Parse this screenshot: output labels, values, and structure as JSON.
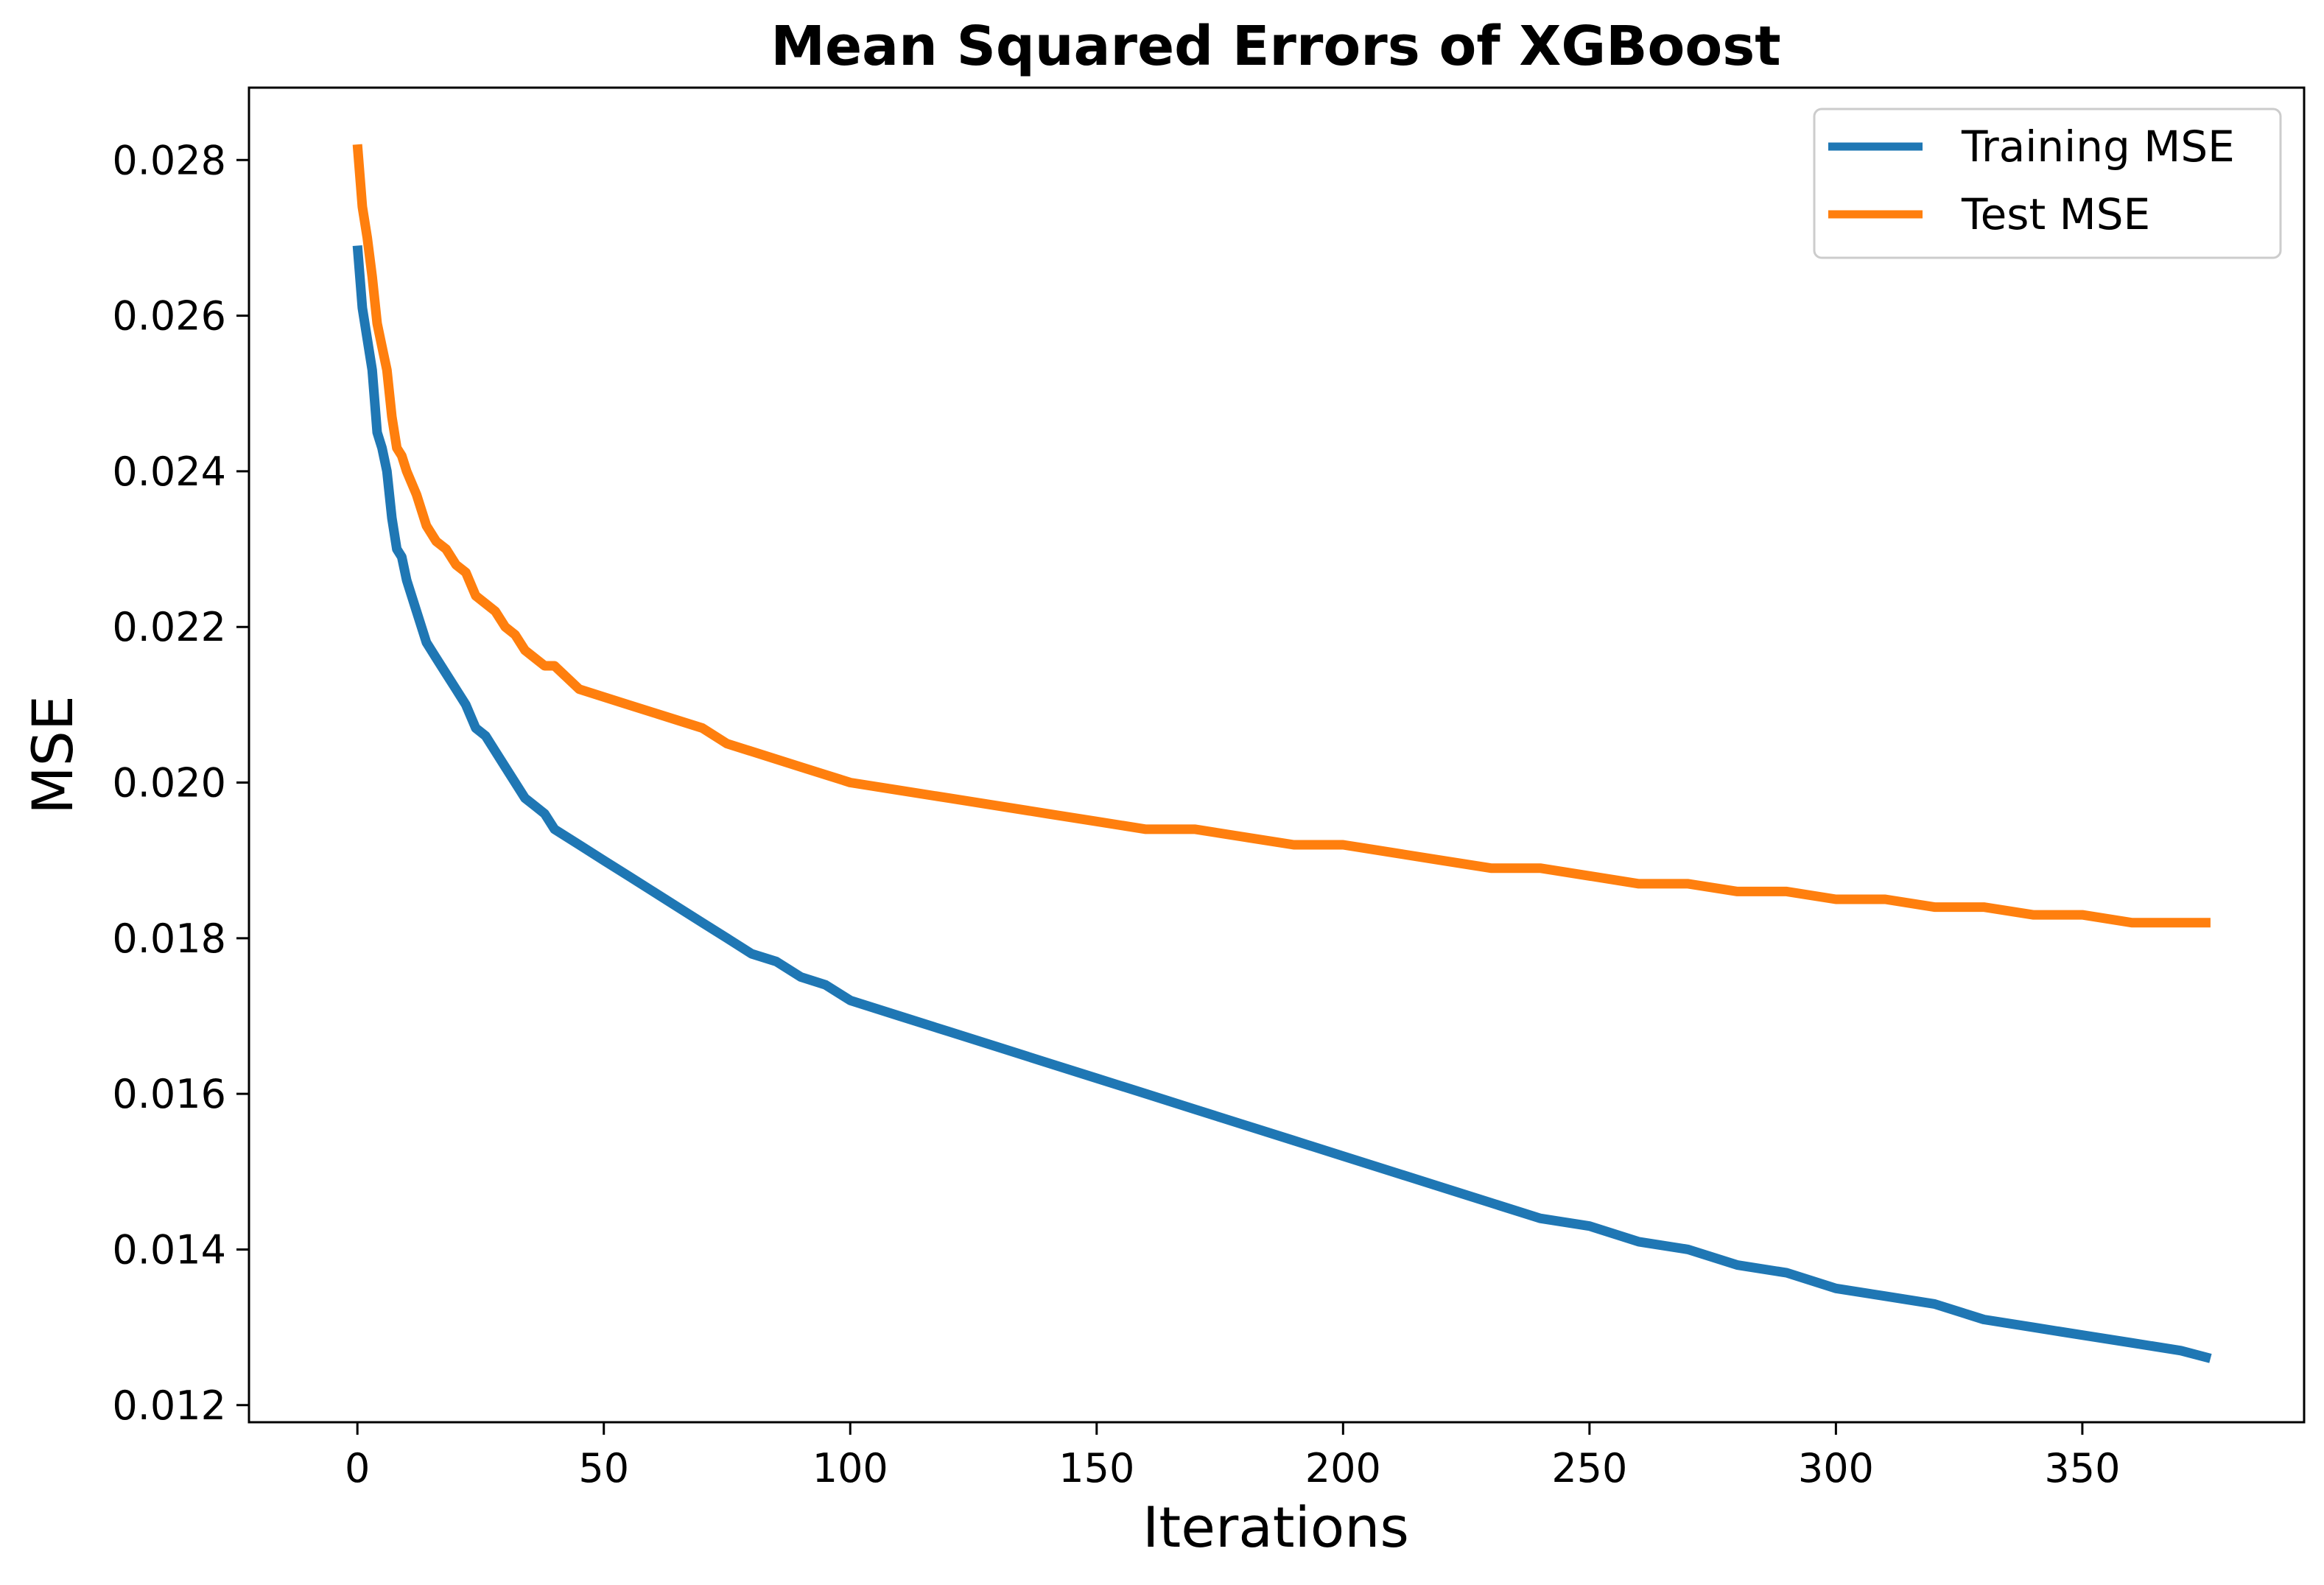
{
  "chart_data": {
    "type": "line",
    "title": "Mean Squared Errors of XGBoost",
    "xlabel": "Iterations",
    "ylabel": "MSE",
    "xlim": [
      -22,
      395
    ],
    "ylim": [
      0.01178,
      0.02893
    ],
    "xticks": [
      0,
      50,
      100,
      150,
      200,
      250,
      300,
      350
    ],
    "xtick_labels": [
      "0",
      "50",
      "100",
      "150",
      "200",
      "250",
      "300",
      "350"
    ],
    "yticks": [
      0.012,
      0.014,
      0.016,
      0.018,
      0.02,
      0.022,
      0.024,
      0.026,
      0.028
    ],
    "ytick_labels": [
      "0.012",
      "0.014",
      "0.016",
      "0.018",
      "0.020",
      "0.022",
      "0.024",
      "0.026",
      "0.028"
    ],
    "grid": false,
    "legend_position": "top-right",
    "x": [
      0,
      1,
      2,
      3,
      4,
      5,
      6,
      7,
      8,
      9,
      10,
      12,
      14,
      16,
      18,
      20,
      22,
      24,
      26,
      28,
      30,
      32,
      34,
      36,
      38,
      40,
      45,
      50,
      55,
      60,
      65,
      70,
      75,
      80,
      85,
      90,
      95,
      100,
      110,
      120,
      130,
      140,
      150,
      160,
      170,
      180,
      190,
      200,
      210,
      220,
      230,
      240,
      250,
      260,
      270,
      280,
      290,
      300,
      310,
      320,
      330,
      340,
      350,
      360,
      370,
      376
    ],
    "series": [
      {
        "name": "Training MSE",
        "color": "#1f77b4",
        "values": [
          0.0269,
          0.0261,
          0.0257,
          0.0253,
          0.0245,
          0.0243,
          0.024,
          0.0234,
          0.023,
          0.0229,
          0.0226,
          0.0222,
          0.0218,
          0.0216,
          0.0214,
          0.0212,
          0.021,
          0.0207,
          0.0206,
          0.0204,
          0.0202,
          0.02,
          0.0198,
          0.0197,
          0.0196,
          0.0194,
          0.0192,
          0.019,
          0.0188,
          0.0186,
          0.0184,
          0.0182,
          0.018,
          0.0178,
          0.0177,
          0.0175,
          0.0174,
          0.0172,
          0.017,
          0.0168,
          0.0166,
          0.0164,
          0.0162,
          0.016,
          0.0158,
          0.0156,
          0.0154,
          0.0152,
          0.015,
          0.0148,
          0.0146,
          0.0144,
          0.0143,
          0.0141,
          0.014,
          0.0138,
          0.0137,
          0.0135,
          0.0134,
          0.0133,
          0.0131,
          0.013,
          0.0129,
          0.0128,
          0.0127,
          0.0126
        ]
      },
      {
        "name": "Test MSE",
        "color": "#ff7f0e",
        "values": [
          0.0282,
          0.0274,
          0.027,
          0.0265,
          0.0259,
          0.0256,
          0.0253,
          0.0247,
          0.0243,
          0.0242,
          0.024,
          0.0237,
          0.0233,
          0.0231,
          0.023,
          0.0228,
          0.0227,
          0.0224,
          0.0223,
          0.0222,
          0.022,
          0.0219,
          0.0217,
          0.0216,
          0.0215,
          0.0215,
          0.0212,
          0.0211,
          0.021,
          0.0209,
          0.0208,
          0.0207,
          0.0205,
          0.0204,
          0.0203,
          0.0202,
          0.0201,
          0.02,
          0.0199,
          0.0198,
          0.0197,
          0.0196,
          0.0195,
          0.0194,
          0.0194,
          0.0193,
          0.0192,
          0.0192,
          0.0191,
          0.019,
          0.0189,
          0.0189,
          0.0188,
          0.0187,
          0.0187,
          0.0186,
          0.0186,
          0.0185,
          0.0185,
          0.0184,
          0.0184,
          0.0183,
          0.0183,
          0.0182,
          0.0182,
          0.0182
        ]
      }
    ]
  }
}
